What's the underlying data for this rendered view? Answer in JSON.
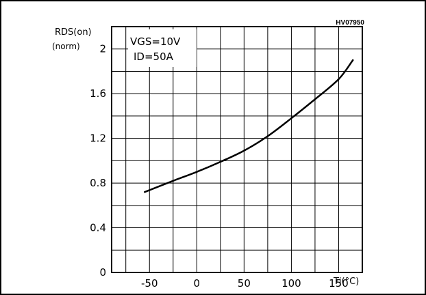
{
  "code": "HV07950",
  "chart_data": {
    "type": "line",
    "title": "",
    "xlabel": "Tj(°C)",
    "ylabel": "Rds(on) (norm)",
    "ylabel_line1": "RDS(on)",
    "ylabel_line2": "(norm)",
    "xlim": [
      -90,
      175
    ],
    "ylim": [
      0,
      2.2
    ],
    "x_ticks": [
      -50,
      0,
      50,
      100,
      150
    ],
    "x_tick_labels": [
      "-50",
      "0",
      "50",
      "100",
      "150"
    ],
    "y_ticks": [
      0,
      0.4,
      0.8,
      1.2,
      1.6,
      2
    ],
    "y_tick_labels": [
      "0",
      "0.4",
      "0.8",
      "1.2",
      "1.6",
      "2"
    ],
    "grid": true,
    "conditions": [
      "VGS=10V",
      "ID=50A"
    ],
    "series": [
      {
        "x": [
          -55,
          -25,
          0,
          25,
          50,
          75,
          100,
          125,
          150,
          165
        ],
        "y": [
          0.72,
          0.82,
          0.9,
          0.99,
          1.09,
          1.22,
          1.38,
          1.55,
          1.73,
          1.9
        ]
      }
    ]
  }
}
